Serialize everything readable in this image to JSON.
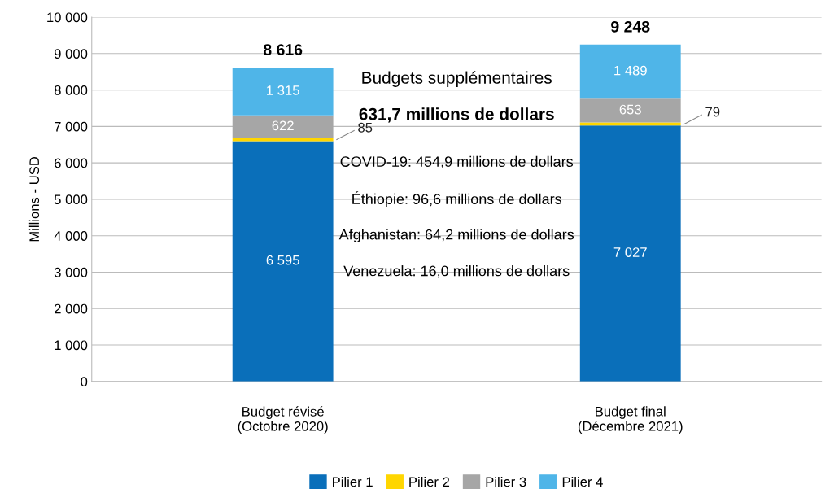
{
  "chart_data": {
    "type": "bar",
    "stacked": true,
    "categories": [
      "Budget révisé\n(Octobre 2020)",
      "Budget final\n(Décembre 2021)"
    ],
    "series": [
      {
        "name": "Pilier 1",
        "color": "#0a6fba",
        "values": [
          6595,
          7027
        ],
        "value_labels": [
          "6 595",
          "7 027"
        ]
      },
      {
        "name": "Pilier 2",
        "color": "#ffd600",
        "values": [
          85,
          79
        ],
        "value_labels": [
          "85",
          "79"
        ]
      },
      {
        "name": "Pilier 3",
        "color": "#a6a6a6",
        "values": [
          622,
          653
        ],
        "value_labels": [
          "622",
          "653"
        ]
      },
      {
        "name": "Pilier 4",
        "color": "#4fb5e8",
        "values": [
          1315,
          1489
        ],
        "value_labels": [
          "1 315",
          "1 489"
        ]
      }
    ],
    "totals": [
      "8 616",
      "9 248"
    ],
    "ylabel": "Millions - USD",
    "ylim": [
      0,
      10000
    ],
    "yticks": [
      {
        "value": 0,
        "label": "0"
      },
      {
        "value": 1000,
        "label": "1 000"
      },
      {
        "value": 2000,
        "label": "2 000"
      },
      {
        "value": 3000,
        "label": "3 000"
      },
      {
        "value": 4000,
        "label": "4 000"
      },
      {
        "value": 5000,
        "label": "5 000"
      },
      {
        "value": 6000,
        "label": "6 000"
      },
      {
        "value": 7000,
        "label": "7 000"
      },
      {
        "value": 8000,
        "label": "8 000"
      },
      {
        "value": 9000,
        "label": "9 000"
      },
      {
        "value": 10000,
        "label": "10 000"
      }
    ],
    "grid": "y",
    "legend": "bottom",
    "annotations": [
      "Budgets supplémentaires",
      "631,7 millions de dollars",
      "COVID-19: 454,9 millions de dollars",
      "Éthiopie: 96,6 millions de dollars",
      "Afghanistan: 64,2 millions de dollars",
      "Venezuela: 16,0 millions de dollars"
    ]
  }
}
